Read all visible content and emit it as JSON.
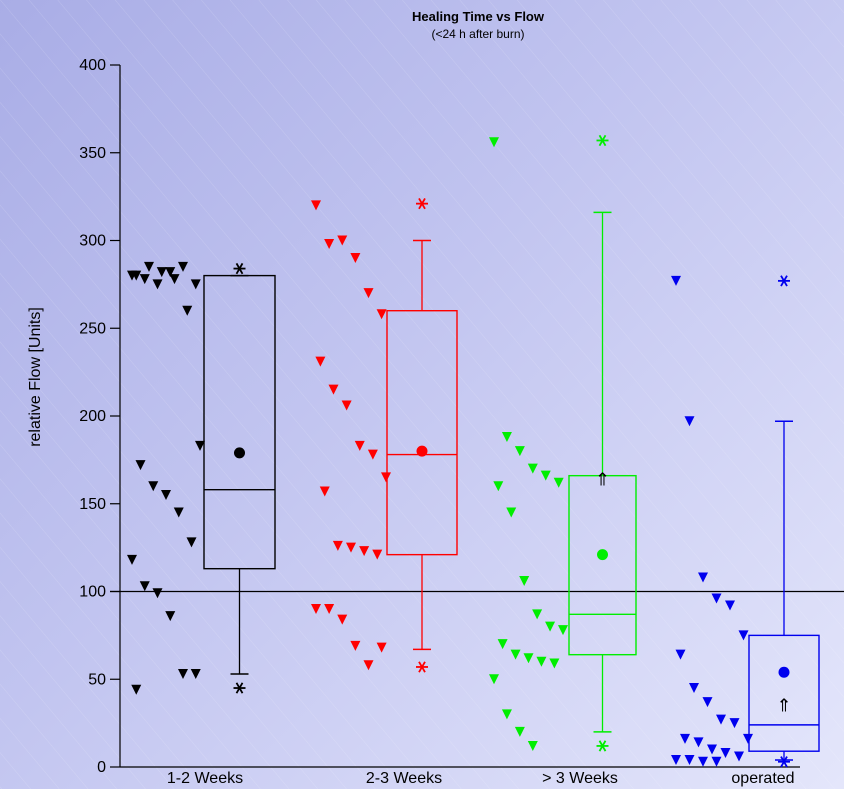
{
  "chart_data": {
    "type": "box",
    "title": "Healing Time vs Flow",
    "subtitle": "(<24 h after burn)",
    "ylabel": "relative Flow [Units]",
    "xlabel": "",
    "ylim": [
      0,
      400
    ],
    "yticks": [
      0,
      50,
      100,
      150,
      200,
      250,
      300,
      350,
      400
    ],
    "reference_line": 100,
    "grid": false,
    "legend": "none",
    "categories": [
      "1-2 Weeks",
      "2-3 Weeks",
      "> 3 Weeks",
      "operated"
    ],
    "series": [
      {
        "color": "#000000",
        "box": {
          "q1": 113,
          "median": 158,
          "q3": 280,
          "whisker_low": 53,
          "whisker_high": 280,
          "mean": 179
        },
        "extremes": [
          284,
          45
        ],
        "points": [
          280,
          278,
          275,
          282,
          285,
          275,
          280,
          285,
          282,
          278,
          260,
          183,
          172,
          160,
          155,
          145,
          128,
          118,
          103,
          99,
          86,
          53,
          53,
          44
        ]
      },
      {
        "color": "#ff0000",
        "box": {
          "q1": 121,
          "median": 178,
          "q3": 260,
          "whisker_low": 67,
          "whisker_high": 300,
          "mean": 180
        },
        "extremes": [
          321,
          57
        ],
        "points": [
          320,
          298,
          300,
          290,
          270,
          258,
          231,
          215,
          206,
          183,
          178,
          165,
          157,
          126,
          125,
          123,
          121,
          90,
          90,
          84,
          69,
          58,
          68
        ]
      },
      {
        "color": "#00ee00",
        "box": {
          "q1": 64,
          "median": 87,
          "q3": 166,
          "whisker_low": 20,
          "whisker_high": 316,
          "mean": 121
        },
        "extremes": [
          357,
          12
        ],
        "points": [
          356,
          188,
          180,
          170,
          166,
          162,
          160,
          145,
          106,
          87,
          80,
          78,
          70,
          64,
          62,
          60,
          59,
          50,
          30,
          20,
          12
        ]
      },
      {
        "color": "#0000ee",
        "box": {
          "q1": 9,
          "median": 24,
          "q3": 75,
          "whisker_low": 4,
          "whisker_high": 197,
          "mean": 54
        },
        "extremes": [
          277,
          3
        ],
        "points": [
          277,
          197,
          108,
          96,
          92,
          75,
          64,
          45,
          37,
          27,
          25,
          16,
          16,
          14,
          10,
          8,
          6,
          4,
          4,
          3,
          3
        ]
      }
    ]
  }
}
